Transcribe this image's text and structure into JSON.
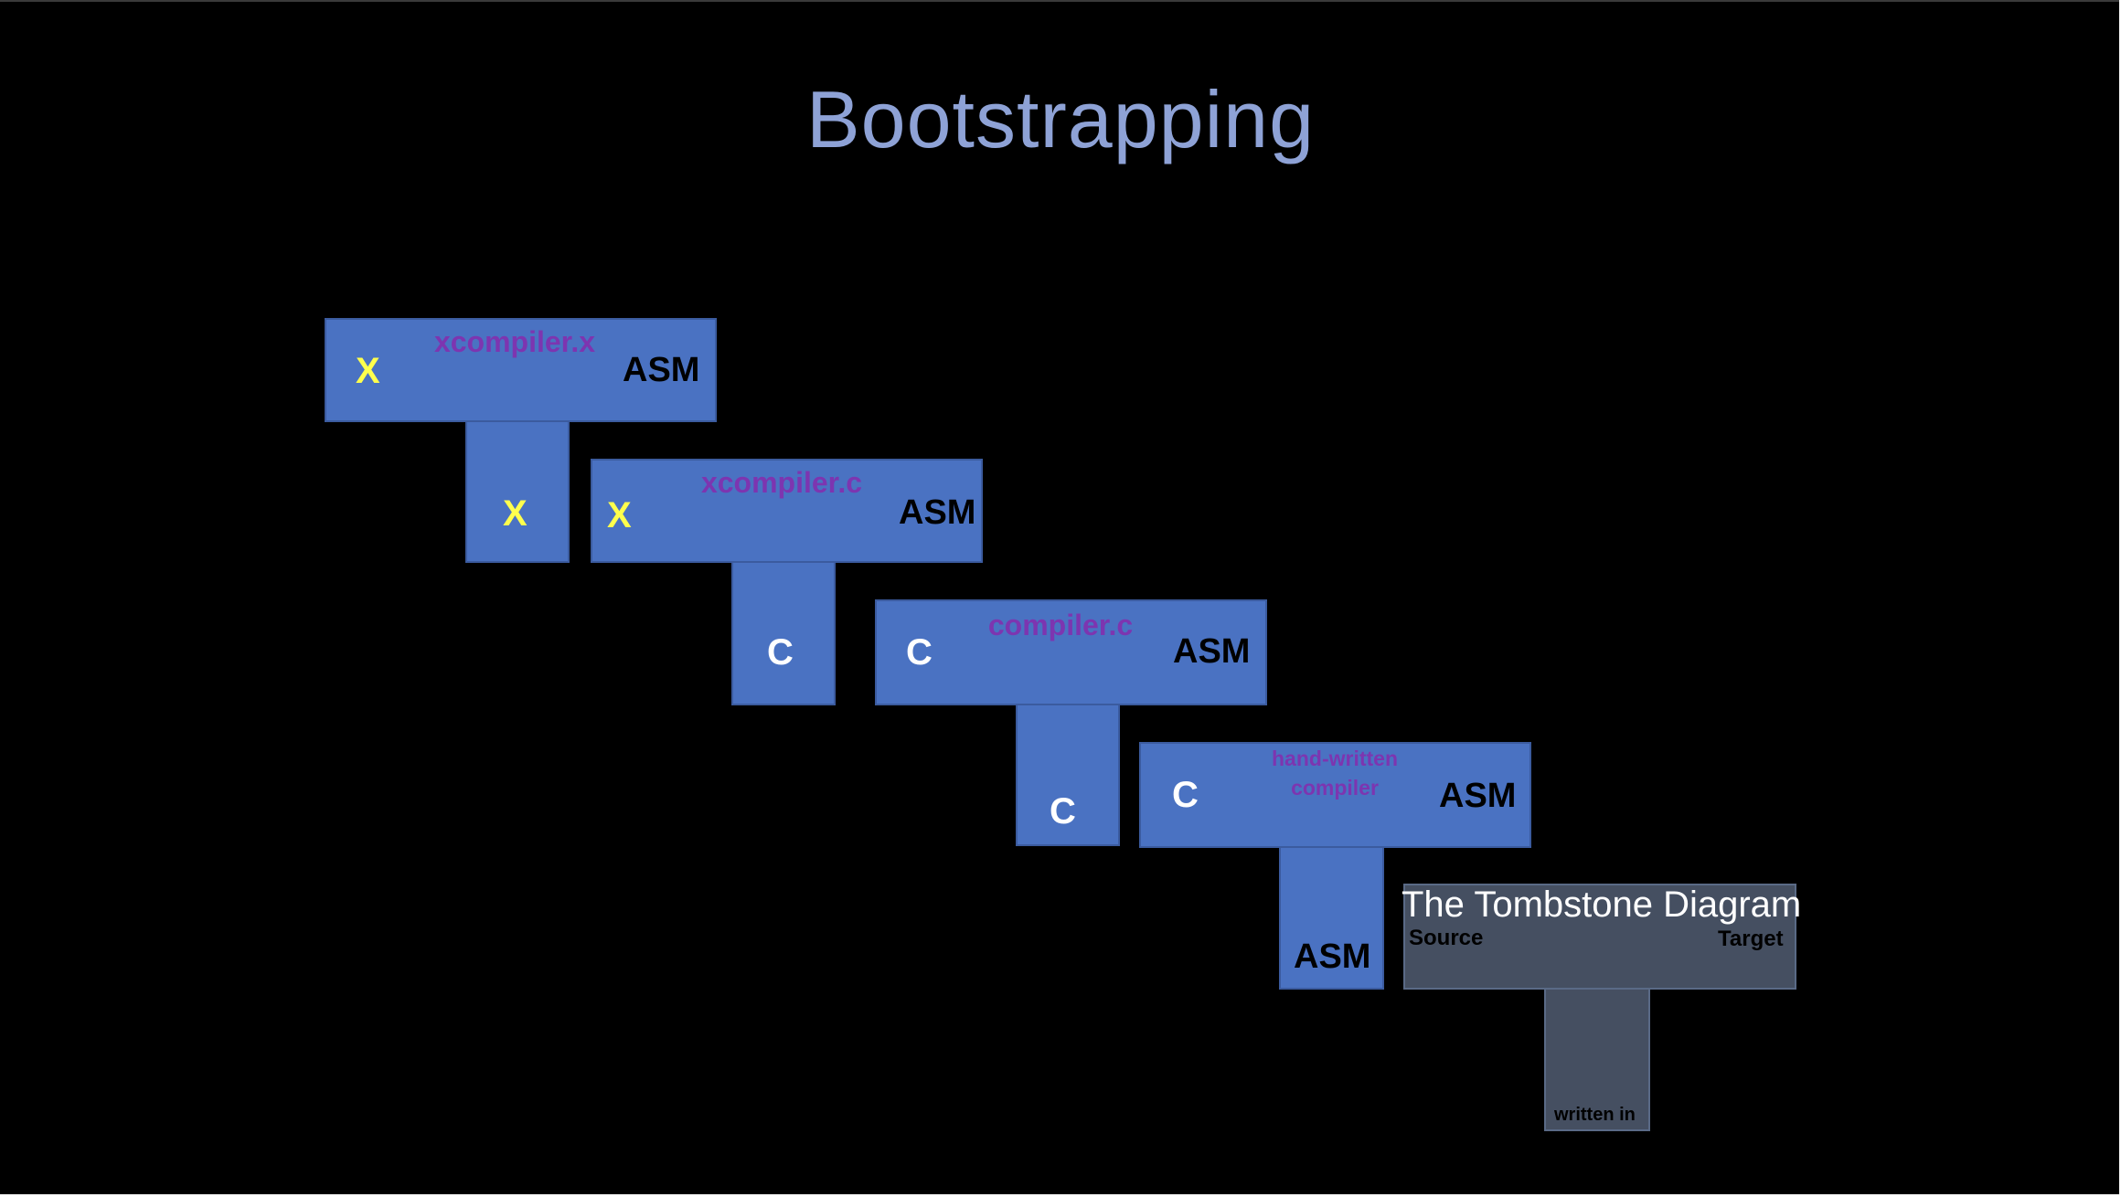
{
  "slide": {
    "title": "Bootstrapping"
  },
  "tombstones": [
    {
      "name": "xcompiler.x",
      "source": "X",
      "target": "ASM",
      "written_in": "X"
    },
    {
      "name": "xcompiler.c",
      "source": "X",
      "target": "ASM",
      "written_in": "C"
    },
    {
      "name": "compiler.c",
      "source": "C",
      "target": "ASM",
      "written_in": "C"
    },
    {
      "name": "hand-written compiler",
      "source": "C",
      "target": "ASM",
      "written_in": "ASM"
    }
  ],
  "legend": {
    "title": "The Tombstone Diagram",
    "source_label": "Source",
    "target_label": "Target",
    "written_in_label": "written in"
  },
  "colors": {
    "background": "#000000",
    "title": "#8ea2d6",
    "tombstone_fill": "#4a72c2",
    "legend_fill": "#454f61",
    "compiler_name": "#7d35b0",
    "symbol_x": "#ffff4d",
    "symbol_c": "#ffffff",
    "symbol_asm": "#000000"
  }
}
